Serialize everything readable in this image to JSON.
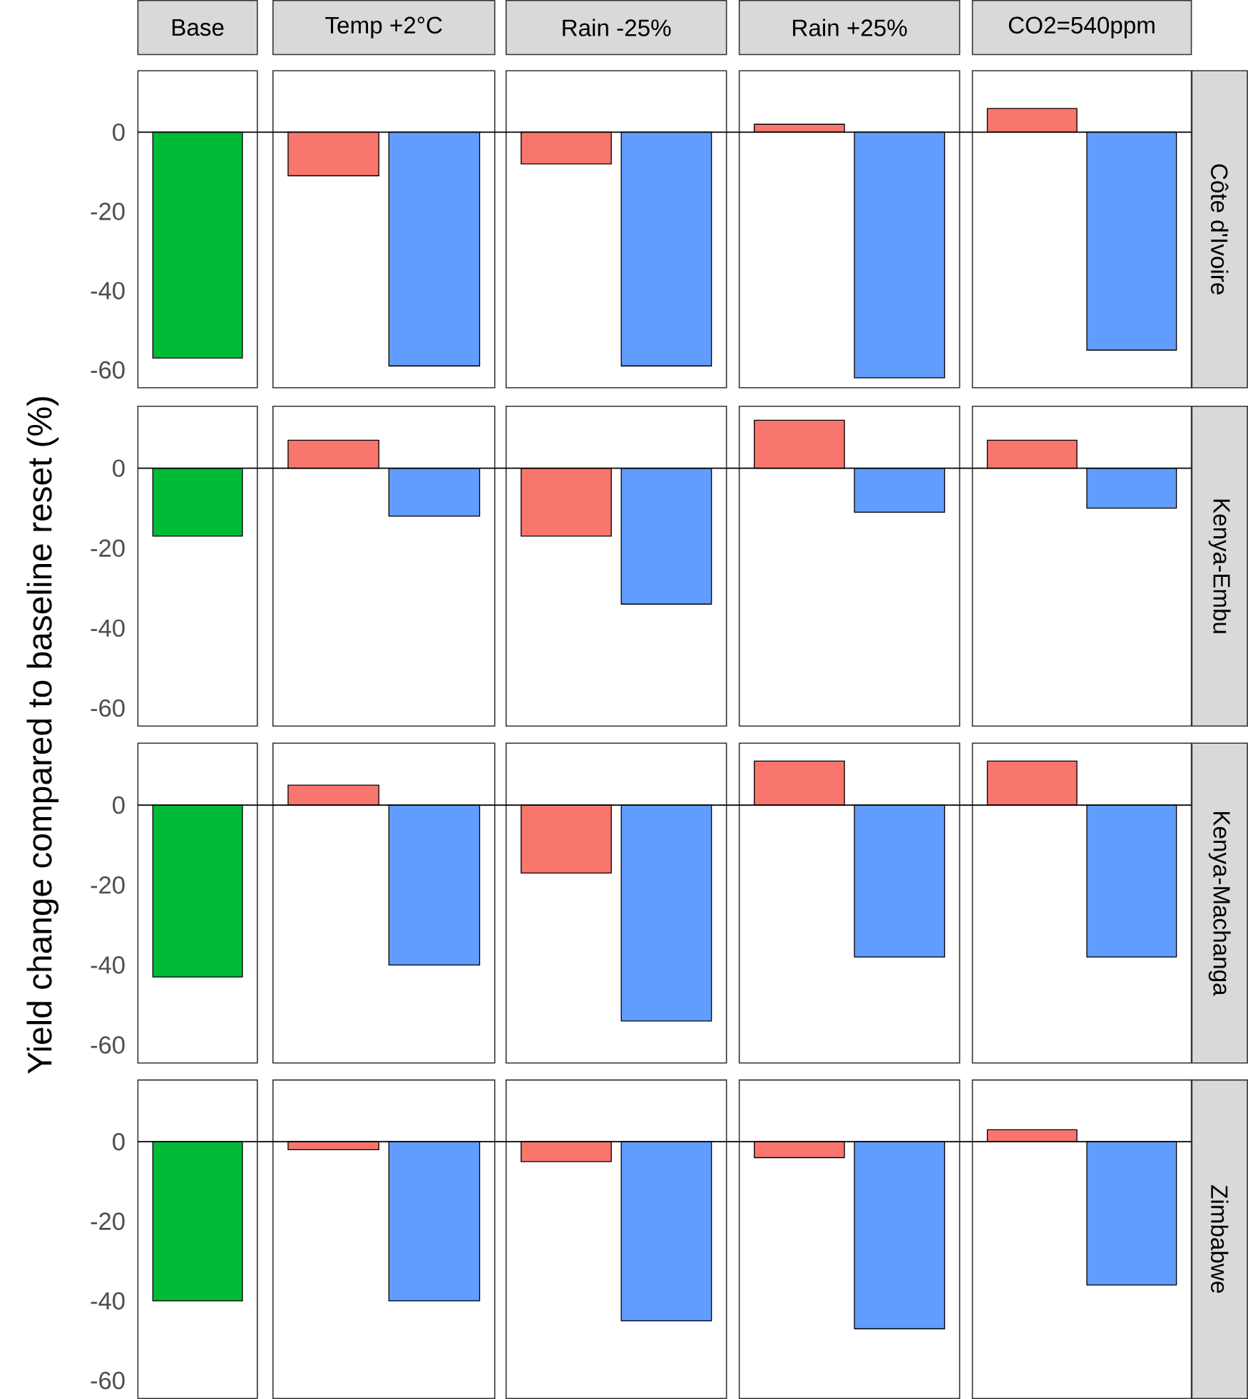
{
  "chart_data": [
    {
      "type": "bar",
      "y2label": "Côte d'Ivoire",
      "ylabel": "Yield change compared to baseline reset (%)",
      "categories": [
        "Base",
        "Temp +2°C",
        "Rain -25%",
        "Rain +25%",
        "CO2=540ppm"
      ],
      "series": [
        {
          "color": "#00ba38",
          "values": [
            -57,
            null,
            null,
            null,
            null
          ]
        },
        {
          "color": "#f8766d",
          "values": [
            null,
            -11,
            -8,
            2,
            6
          ]
        },
        {
          "color": "#619cff",
          "values": [
            null,
            -59,
            -59,
            -62,
            -55
          ]
        }
      ],
      "ylim": [
        -64.5,
        15.5
      ],
      "yticks": [
        -60,
        -40,
        -20,
        0
      ],
      "ref_lines": [
        {
          "axis": "y",
          "value": 0
        }
      ]
    },
    {
      "type": "bar",
      "y2label": "Kenya-Embu",
      "categories": [
        null,
        null,
        null,
        null,
        null
      ],
      "series": [
        {
          "color": "#00ba38",
          "values": [
            -17,
            null,
            null,
            null,
            null
          ]
        },
        {
          "color": "#f8766d",
          "values": [
            null,
            7,
            -17,
            12,
            7
          ]
        },
        {
          "color": "#619cff",
          "values": [
            null,
            -12,
            -34,
            -11,
            -10
          ]
        }
      ],
      "ylim": [
        -64.5,
        15.5
      ],
      "yticks": [
        -60,
        -40,
        -20,
        0
      ],
      "ref_lines": [
        {
          "axis": "y",
          "value": 0
        }
      ],
      "tick_labels": "y"
    },
    {
      "type": "bar",
      "y2label": "Kenya-Machanga",
      "categories": [
        null,
        null,
        null,
        null,
        null
      ],
      "series": [
        {
          "color": "#00ba38",
          "values": [
            -43,
            null,
            null,
            null,
            null
          ]
        },
        {
          "color": "#f8766d",
          "values": [
            null,
            5,
            -17,
            11,
            11
          ]
        },
        {
          "color": "#619cff",
          "values": [
            null,
            -40,
            -54,
            -38,
            -38
          ]
        }
      ],
      "ylim": [
        -64.5,
        15.5
      ],
      "yticks": [
        -60,
        -40,
        -20,
        0
      ],
      "ref_lines": [
        {
          "axis": "y",
          "value": 0
        }
      ],
      "tick_labels": "y"
    },
    {
      "type": "bar",
      "y2label": "Zimbabwe",
      "categories": [
        null,
        null,
        null,
        null,
        null
      ],
      "series": [
        {
          "color": "#00ba38",
          "values": [
            -40,
            null,
            null,
            null,
            null
          ]
        },
        {
          "color": "#f8766d",
          "values": [
            null,
            -2,
            -5,
            -4,
            3
          ]
        },
        {
          "color": "#619cff",
          "values": [
            null,
            -40,
            -45,
            -47,
            -36
          ]
        }
      ],
      "ylim": [
        -64.5,
        15.5
      ],
      "yticks": [
        -60,
        -40,
        -20,
        0
      ],
      "ref_lines": [
        {
          "axis": "y",
          "value": 0
        }
      ],
      "tick_labels": "y"
    }
  ]
}
